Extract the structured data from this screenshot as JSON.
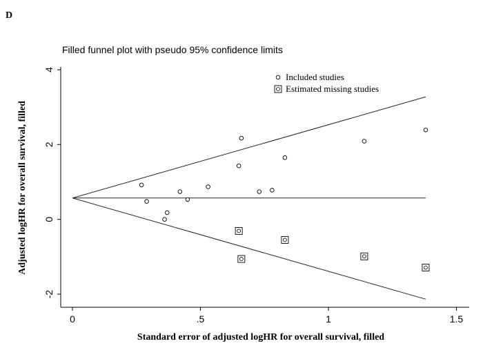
{
  "panel_label": "D",
  "chart_data": {
    "type": "scatter",
    "title": "Filled funnel plot with pseudo 95% confidence limits",
    "xlabel": "Standard error of adjusted logHR for overall survival, filled",
    "ylabel": "Adjusted logHR for overall survival, filled",
    "xlim": [
      0,
      1.55
    ],
    "ylim": [
      -2.2,
      4.2
    ],
    "x_ticks": [
      0,
      0.5,
      1,
      1.5
    ],
    "x_tick_labels": [
      "0",
      ".5",
      "1",
      "1.5"
    ],
    "y_ticks": [
      -2,
      0,
      2,
      4
    ],
    "y_tick_labels": [
      "-2",
      "0",
      "2",
      "4"
    ],
    "pooled_estimate": 0.57,
    "funnel_max_se": 1.38,
    "legend": {
      "position": "top-right",
      "included_label": "Included studies",
      "missing_label": "Estimated missing studies"
    },
    "series": [
      {
        "name": "Included studies",
        "marker": "hollow-circle",
        "points": [
          {
            "se": 0.27,
            "loghr": 0.92
          },
          {
            "se": 0.29,
            "loghr": 0.48
          },
          {
            "se": 0.36,
            "loghr": 0.0
          },
          {
            "se": 0.37,
            "loghr": 0.18
          },
          {
            "se": 0.42,
            "loghr": 0.74
          },
          {
            "se": 0.45,
            "loghr": 0.53
          },
          {
            "se": 0.53,
            "loghr": 0.87
          },
          {
            "se": 0.65,
            "loghr": 1.43
          },
          {
            "se": 0.66,
            "loghr": 2.17
          },
          {
            "se": 0.73,
            "loghr": 0.74
          },
          {
            "se": 0.78,
            "loghr": 0.78
          },
          {
            "se": 0.83,
            "loghr": 1.65
          },
          {
            "se": 1.14,
            "loghr": 2.09
          },
          {
            "se": 1.38,
            "loghr": 2.39
          }
        ]
      },
      {
        "name": "Estimated missing studies",
        "marker": "boxed-circle",
        "points": [
          {
            "se": 0.65,
            "loghr": -0.31
          },
          {
            "se": 0.66,
            "loghr": -1.06
          },
          {
            "se": 0.83,
            "loghr": -0.55
          },
          {
            "se": 1.14,
            "loghr": -0.99
          },
          {
            "se": 1.38,
            "loghr": -1.29
          }
        ]
      }
    ]
  }
}
